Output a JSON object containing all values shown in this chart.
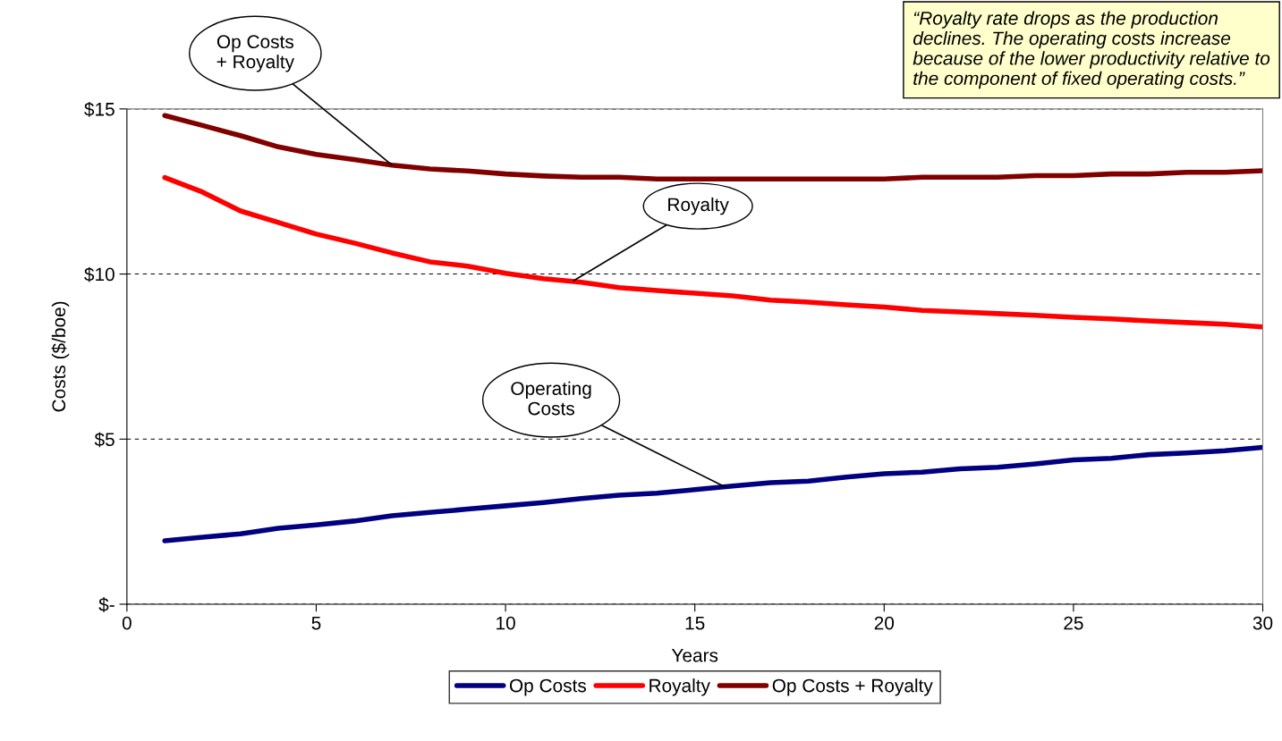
{
  "chart_data": {
    "type": "line",
    "xlabel": "Years",
    "ylabel": "Costs ($/boe)",
    "x": [
      1,
      2,
      3,
      4,
      5,
      6,
      7,
      8,
      9,
      10,
      11,
      12,
      13,
      14,
      15,
      16,
      17,
      18,
      19,
      20,
      21,
      22,
      23,
      24,
      25,
      26,
      27,
      28,
      29,
      30
    ],
    "series": [
      {
        "name": "Op Costs",
        "color": "#000080",
        "values": [
          1.92,
          2.03,
          2.13,
          2.3,
          2.4,
          2.52,
          2.68,
          2.78,
          2.88,
          2.98,
          3.08,
          3.2,
          3.3,
          3.36,
          3.47,
          3.58,
          3.68,
          3.73,
          3.85,
          3.95,
          4.0,
          4.1,
          4.15,
          4.25,
          4.37,
          4.42,
          4.53,
          4.58,
          4.65,
          4.75
        ]
      },
      {
        "name": "Royalty",
        "color": "#ff0000",
        "values": [
          12.92,
          12.48,
          11.91,
          11.56,
          11.21,
          10.94,
          10.64,
          10.37,
          10.24,
          10.02,
          9.86,
          9.75,
          9.59,
          9.5,
          9.42,
          9.34,
          9.21,
          9.15,
          9.07,
          9.0,
          8.9,
          8.85,
          8.8,
          8.75,
          8.69,
          8.64,
          8.58,
          8.53,
          8.48,
          8.4
        ]
      },
      {
        "name": "Op Costs + Royalty",
        "color": "#800000",
        "values": [
          14.8,
          14.5,
          14.19,
          13.85,
          13.62,
          13.47,
          13.3,
          13.18,
          13.12,
          13.03,
          12.97,
          12.93,
          12.93,
          12.88,
          12.88,
          12.88,
          12.88,
          12.88,
          12.88,
          12.88,
          12.93,
          12.93,
          12.93,
          12.98,
          12.98,
          13.03,
          13.03,
          13.08,
          13.08,
          13.13
        ]
      }
    ],
    "xlim": [
      0,
      30
    ],
    "xticks": [
      0,
      5,
      10,
      15,
      20,
      25,
      30
    ],
    "ylim": [
      0,
      15
    ],
    "yticks": [
      {
        "value": 0,
        "label": "$-"
      },
      {
        "value": 5,
        "label": "$5"
      },
      {
        "value": 10,
        "label": "$10"
      },
      {
        "value": 15,
        "label": "$15"
      }
    ],
    "grid": "y",
    "legend": "bottom",
    "marker": "none",
    "line_style": "solid",
    "annotations": [
      {
        "text": "Op Costs\n+ Royalty",
        "x": 7,
        "y": 13.3
      },
      {
        "text": "Royalty",
        "x": 11.8,
        "y": 9.8
      },
      {
        "text": "Operating\nCosts",
        "x": 15.8,
        "y": 3.55
      },
      "“Royalty rate drops as the production declines. The operating costs increase because of the lower productivity relative to the component of fixed operating costs.”"
    ]
  }
}
